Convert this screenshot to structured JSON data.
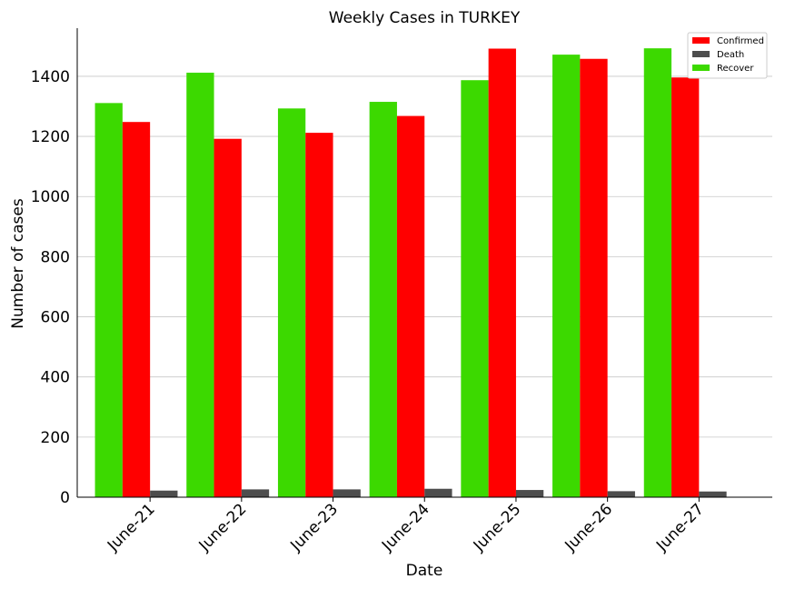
{
  "chart_data": {
    "type": "bar",
    "title": "Weekly Cases in TURKEY",
    "xlabel": "Date",
    "ylabel": "Number of cases",
    "categories": [
      "June-21",
      "June-22",
      "June-23",
      "June-24",
      "June-25",
      "June-26",
      "June-27"
    ],
    "series": [
      {
        "name": "Recover",
        "color": "#3cd900",
        "values": [
          1311,
          1412,
          1293,
          1315,
          1387,
          1472,
          1493
        ]
      },
      {
        "name": "Confirmed",
        "color": "#ff0000",
        "values": [
          1248,
          1192,
          1212,
          1268,
          1492,
          1458,
          1396
        ]
      },
      {
        "name": "Death",
        "color": "#4d4d4d",
        "values": [
          22,
          26,
          26,
          28,
          24,
          20,
          19
        ]
      }
    ],
    "legend_order": [
      "Confirmed",
      "Death",
      "Recover"
    ],
    "ylim": [
      0,
      1560
    ],
    "yticks": [
      0,
      200,
      400,
      600,
      800,
      1000,
      1200,
      1400
    ],
    "grid": "horizontal",
    "legend_position": "top-right",
    "xtick_rotation": 45
  }
}
